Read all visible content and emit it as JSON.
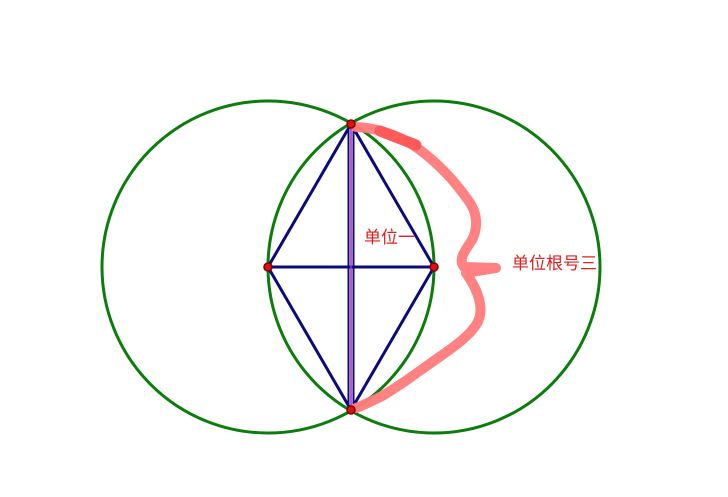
{
  "labels": {
    "segment_one": "单位一",
    "segment_root_three": "单位根号三"
  },
  "colors": {
    "circle": "#0a7d0a",
    "rhombus": "#0a0a7d",
    "vertical_inner": "#b01fb0",
    "point_fill": "#e01010",
    "point_stroke": "#800000",
    "brace": "#ff7a7a",
    "label": "#e02020"
  }
}
